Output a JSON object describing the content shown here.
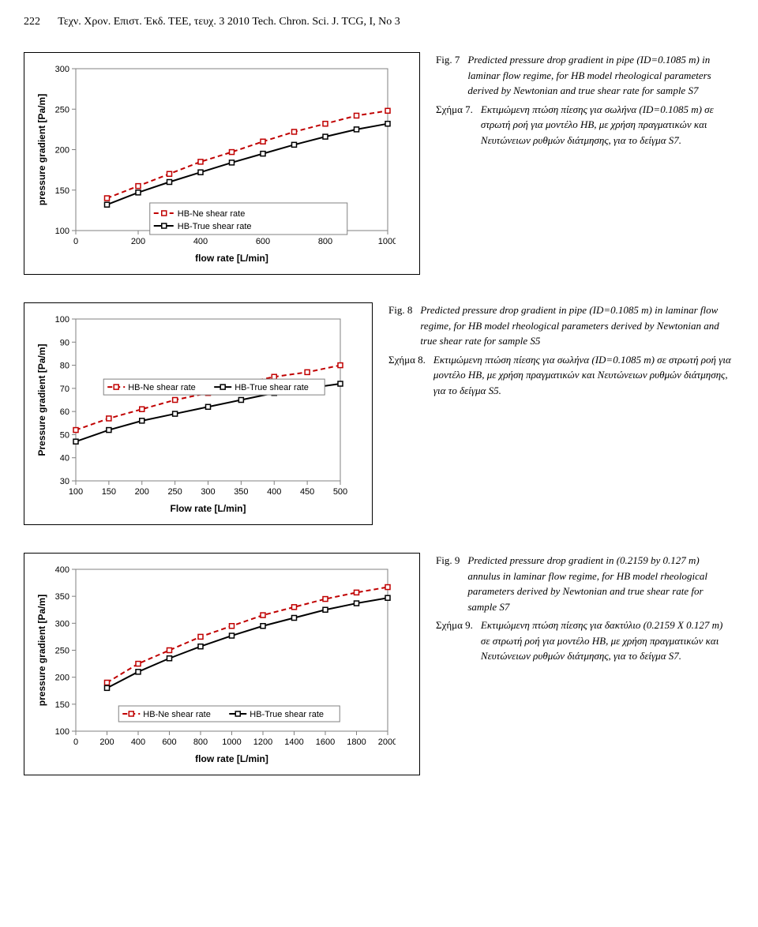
{
  "header": {
    "page_number": "222",
    "running_title": "Τεχν. Χρον. Επιστ. Έκδ. ΤΕΕ, τευχ. 3  2010 Tech. Chron. Sci. J. TCG, I, No 3"
  },
  "fig7": {
    "chart": {
      "type": "line",
      "xlabel": "flow rate [L/min]",
      "ylabel": "pressure gradient [Pa/m]",
      "xlim": [
        0,
        1000
      ],
      "ylim": [
        100,
        300
      ],
      "xtick_step": 200,
      "ytick_step": 50,
      "background_color": "#ffffff",
      "grid": false,
      "series": [
        {
          "name": "HB-Ne shear rate",
          "color": "#c00000",
          "dash": "6,4",
          "marker": "square-open",
          "marker_size": 6,
          "x": [
            100,
            200,
            300,
            400,
            500,
            600,
            700,
            800,
            900,
            1000
          ],
          "y": [
            140,
            155,
            170,
            185,
            197,
            210,
            222,
            232,
            242,
            248
          ]
        },
        {
          "name": "HB-True shear rate",
          "color": "#000000",
          "dash": "none",
          "marker": "square-open",
          "marker_size": 6,
          "x": [
            100,
            200,
            300,
            400,
            500,
            600,
            700,
            800,
            900,
            1000
          ],
          "y": [
            132,
            147,
            160,
            172,
            184,
            195,
            206,
            216,
            225,
            232
          ]
        }
      ],
      "legend_pos": "bottom-center"
    },
    "caption_en_tag": "Fig. 7",
    "caption_en": "Predicted pressure drop gradient in pipe (ID=0.1085 m) in laminar flow regime, for HB model rheological parameters derived by Newtonian and true shear rate for sample S7",
    "caption_el_tag": "Σχήμα 7.",
    "caption_el": "Εκτιμώμενη πτώση πίεσης για σωλήνα (ID=0.1085 m) σε στρωτή ροή για μοντέλο HB, με χρήση πραγματικών και Νευτώνειων ρυθμών διάτμησης, για το δείγμα S7."
  },
  "fig8": {
    "chart": {
      "type": "line",
      "xlabel": "Flow rate [L/min]",
      "ylabel": "Pressure gradient [Pa/m]",
      "xlim": [
        100,
        500
      ],
      "ylim": [
        30,
        100
      ],
      "xtick_step": 50,
      "ytick_step": 10,
      "background_color": "#ffffff",
      "grid": false,
      "series": [
        {
          "name": "HB-Ne shear rate",
          "color": "#c00000",
          "dash": "6,4",
          "marker": "square-open",
          "marker_size": 6,
          "x": [
            100,
            150,
            200,
            250,
            300,
            350,
            400,
            450,
            500
          ],
          "y": [
            52,
            57,
            61,
            65,
            68,
            72,
            75,
            77,
            80
          ]
        },
        {
          "name": "HB-True shear rate",
          "color": "#000000",
          "dash": "none",
          "marker": "square-open",
          "marker_size": 6,
          "x": [
            100,
            150,
            200,
            250,
            300,
            350,
            400,
            450,
            500
          ],
          "y": [
            47,
            52,
            56,
            59,
            62,
            65,
            68,
            70,
            72
          ]
        }
      ],
      "legend_pos": "middle-center"
    },
    "caption_en_tag": "Fig. 8",
    "caption_en": "Predicted pressure drop gradient in pipe (ID=0.1085 m) in laminar flow regime, for HB model rheological parameters derived by Newtonian and true shear rate for sample S5",
    "caption_el_tag": "Σχήμα 8.",
    "caption_el": "Εκτιμώμενη πτώση πίεσης για σωλήνα (ID=0.1085 m) σε στρωτή ροή για μοντέλο HB, με χρήση πραγματικών και Νευτώνειων ρυθμών διάτμησης, για το δείγμα S5."
  },
  "fig9": {
    "chart": {
      "type": "line",
      "xlabel": "flow rate [L/min]",
      "ylabel": "pressure gradient [Pa/m]",
      "xlim": [
        0,
        2000
      ],
      "ylim": [
        100,
        400
      ],
      "xtick_step": 200,
      "ytick_step": 50,
      "background_color": "#ffffff",
      "grid": false,
      "series": [
        {
          "name": "HB-Ne shear rate",
          "color": "#c00000",
          "dash": "6,4",
          "marker": "square-open",
          "marker_size": 6,
          "x": [
            200,
            400,
            600,
            800,
            1000,
            1200,
            1400,
            1600,
            1800,
            2000
          ],
          "y": [
            190,
            225,
            250,
            275,
            295,
            315,
            330,
            345,
            357,
            367
          ]
        },
        {
          "name": "HB-True shear rate",
          "color": "#000000",
          "dash": "none",
          "marker": "square-open",
          "marker_size": 6,
          "x": [
            200,
            400,
            600,
            800,
            1000,
            1200,
            1400,
            1600,
            1800,
            2000
          ],
          "y": [
            180,
            210,
            235,
            257,
            277,
            295,
            310,
            325,
            337,
            347
          ]
        }
      ],
      "legend_pos": "bottom-center"
    },
    "caption_en_tag": "Fig. 9",
    "caption_en": "Predicted pressure drop gradient in (0.2159 by 0.127 m) annulus in laminar flow regime, for HB model rheological parameters derived by Newtonian and true shear rate for sample S7",
    "caption_el_tag": "Σχήμα 9.",
    "caption_el": "Εκτιμώμενη πτώση πίεσης για δακτύλιο (0.2159 Χ 0.127 m) σε στρωτή ροή για μοντέλο HB, με χρήση πραγματικών και Νευτώνειων ρυθμών διάτμησης, για το δείγμα S7."
  }
}
